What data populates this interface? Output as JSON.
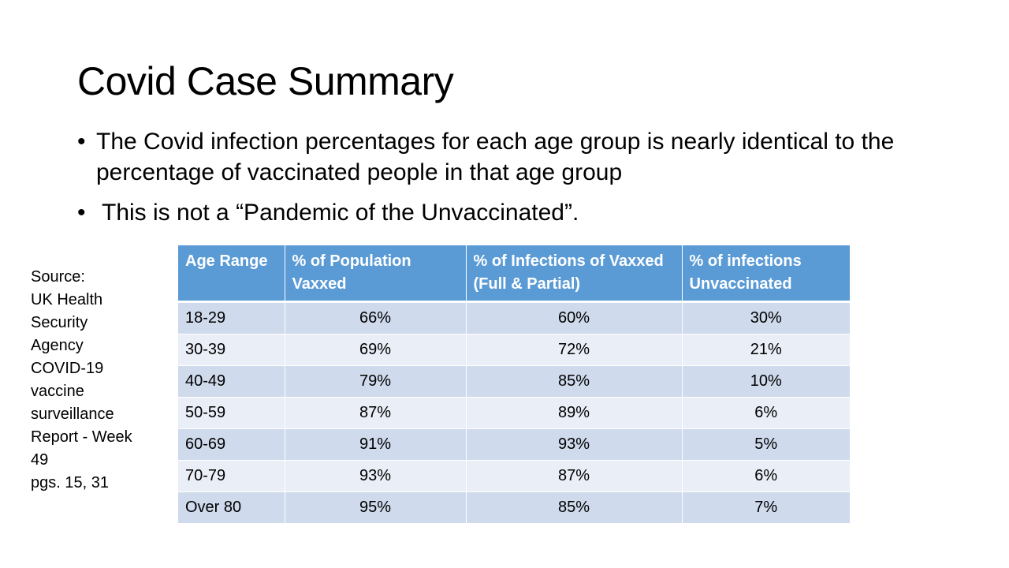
{
  "slide": {
    "title": "Covid Case Summary",
    "bullets": [
      "The Covid infection percentages for each age group is nearly identical to the percentage of vaccinated people in that age group",
      "This is not a “Pandemic of the Unvaccinated”."
    ],
    "source": "Source:\n  UK Health\nSecurity\nAgency\nCOVID-19\nvaccine\nsurveillance\n Report - Week\n49\npgs. 15, 31"
  },
  "table": {
    "headers": [
      "Age Range",
      "%  of Population Vaxxed",
      "% of Infections of Vaxxed (Full & Partial)",
      "% of infections Unvaccinated"
    ],
    "rows": [
      [
        "18-29",
        "66%",
        "60%",
        "30%"
      ],
      [
        "30-39",
        "69%",
        "72%",
        "21%"
      ],
      [
        "40-49",
        "79%",
        "85%",
        "10%"
      ],
      [
        "50-59",
        "87%",
        "89%",
        "6%"
      ],
      [
        "60-69",
        "91%",
        "93%",
        "5%"
      ],
      [
        "70-79",
        "93%",
        "87%",
        "6%"
      ],
      [
        "Over 80",
        "95%",
        "85%",
        "7%"
      ]
    ],
    "colors": {
      "header": "#5b9bd5",
      "row_dark": "#cfdaed",
      "row_light": "#e9eef7"
    }
  }
}
